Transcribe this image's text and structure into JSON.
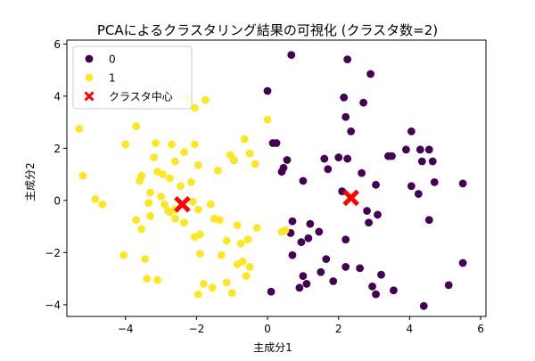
{
  "chart_data": {
    "type": "scatter",
    "title": "PCAによるクラスタリング結果の可視化 (クラスタ数=2)",
    "xlabel": "主成分1",
    "ylabel": "主成分2",
    "xlim": [
      -5.65,
      6.15
    ],
    "ylim": [
      -4.45,
      6.15
    ],
    "xticks": [
      -4,
      -2,
      0,
      2,
      4,
      6
    ],
    "yticks": [
      -4,
      -2,
      0,
      2,
      4,
      6
    ],
    "grid": false,
    "legend_position": "top-left",
    "colors": {
      "cluster0": "#440154",
      "cluster1": "#fde725",
      "center": "#ff0000"
    },
    "series": [
      {
        "name": "0",
        "marker": "circle",
        "color": "#440154",
        "points": [
          [
            0.67,
            5.58
          ],
          [
            2.25,
            5.41
          ],
          [
            2.9,
            4.85
          ],
          [
            0.0,
            4.2
          ],
          [
            2.15,
            3.95
          ],
          [
            2.7,
            3.75
          ],
          [
            2.2,
            3.2
          ],
          [
            2.35,
            2.65
          ],
          [
            4.05,
            2.65
          ],
          [
            0.25,
            2.2
          ],
          [
            0.15,
            2.2
          ],
          [
            3.9,
            1.95
          ],
          [
            4.3,
            1.95
          ],
          [
            4.55,
            1.95
          ],
          [
            3.5,
            1.7
          ],
          [
            3.4,
            1.7
          ],
          [
            4.65,
            1.5
          ],
          [
            2.25,
            1.6
          ],
          [
            2.0,
            1.65
          ],
          [
            0.55,
            1.55
          ],
          [
            0.45,
            1.25
          ],
          [
            0.4,
            1.1
          ],
          [
            1.6,
            1.6
          ],
          [
            1.7,
            1.2
          ],
          [
            2.65,
            1.05
          ],
          [
            4.35,
            1.5
          ],
          [
            3.05,
            0.6
          ],
          [
            4.05,
            0.55
          ],
          [
            4.25,
            0.25
          ],
          [
            4.7,
            0.7
          ],
          [
            5.5,
            0.65
          ],
          [
            1.0,
            0.75
          ],
          [
            2.1,
            0.35
          ],
          [
            2.8,
            -0.4
          ],
          [
            3.1,
            -0.55
          ],
          [
            2.85,
            -0.85
          ],
          [
            4.55,
            -0.75
          ],
          [
            0.7,
            -0.8
          ],
          [
            1.2,
            -0.9
          ],
          [
            1.45,
            -1.2
          ],
          [
            0.65,
            -1.25
          ],
          [
            1.15,
            -1.45
          ],
          [
            2.2,
            -1.5
          ],
          [
            0.95,
            -1.6
          ],
          [
            0.7,
            -2.1
          ],
          [
            1.65,
            -2.25
          ],
          [
            1.5,
            -2.75
          ],
          [
            1.0,
            -2.9
          ],
          [
            2.2,
            -2.55
          ],
          [
            2.6,
            -2.6
          ],
          [
            3.2,
            -2.85
          ],
          [
            1.85,
            -3.1
          ],
          [
            1.1,
            -3.2
          ],
          [
            0.9,
            -3.35
          ],
          [
            2.95,
            -3.3
          ],
          [
            3.05,
            -3.6
          ],
          [
            3.55,
            -3.45
          ],
          [
            5.1,
            -3.25
          ],
          [
            5.5,
            -2.4
          ],
          [
            0.1,
            -3.5
          ],
          [
            4.4,
            -4.05
          ],
          [
            -0.95,
            1.55
          ]
        ]
      },
      {
        "name": "1",
        "marker": "circle",
        "color": "#fde725",
        "points": [
          [
            -1.75,
            3.85
          ],
          [
            -2.25,
            3.95
          ],
          [
            -2.05,
            3.55
          ],
          [
            0.0,
            3.1
          ],
          [
            -3.7,
            2.85
          ],
          [
            -5.3,
            2.75
          ],
          [
            -4.0,
            2.15
          ],
          [
            -3.15,
            2.2
          ],
          [
            -2.7,
            2.15
          ],
          [
            -2.05,
            2.15
          ],
          [
            -0.65,
            2.35
          ],
          [
            -2.35,
            1.85
          ],
          [
            -2.6,
            1.5
          ],
          [
            -1.95,
            1.35
          ],
          [
            -1.05,
            1.75
          ],
          [
            -0.5,
            1.8
          ],
          [
            -0.35,
            1.4
          ],
          [
            -0.95,
            1.55
          ],
          [
            -3.2,
            1.65
          ],
          [
            -3.1,
            1.1
          ],
          [
            -2.95,
            1.0
          ],
          [
            -3.55,
            0.95
          ],
          [
            -5.2,
            0.95
          ],
          [
            -3.6,
            0.75
          ],
          [
            -2.75,
            0.85
          ],
          [
            -2.15,
            0.7
          ],
          [
            -1.4,
            1.15
          ],
          [
            -2.45,
            0.55
          ],
          [
            -3.3,
            0.3
          ],
          [
            -3.0,
            0.15
          ],
          [
            -2.9,
            -0.15
          ],
          [
            -4.85,
            0.05
          ],
          [
            -4.65,
            -0.15
          ],
          [
            -3.35,
            -0.1
          ],
          [
            -2.8,
            -0.4
          ],
          [
            -2.75,
            -0.45
          ],
          [
            -2.6,
            -0.35
          ],
          [
            -2.1,
            -0.05
          ],
          [
            -1.95,
            -0.35
          ],
          [
            -1.6,
            -0.15
          ],
          [
            -3.7,
            -0.75
          ],
          [
            -3.3,
            -0.6
          ],
          [
            -3.55,
            -1.1
          ],
          [
            -2.35,
            -0.85
          ],
          [
            -1.5,
            -0.7
          ],
          [
            -1.35,
            -0.75
          ],
          [
            -0.85,
            -0.95
          ],
          [
            -0.3,
            -1.05
          ],
          [
            -1.9,
            -1.3
          ],
          [
            -2.05,
            -1.4
          ],
          [
            -1.15,
            -1.55
          ],
          [
            -0.55,
            -1.5
          ],
          [
            -0.75,
            -1.65
          ],
          [
            0.4,
            -1.2
          ],
          [
            -4.05,
            -2.1
          ],
          [
            -3.45,
            -2.25
          ],
          [
            -1.9,
            -2.05
          ],
          [
            -1.3,
            -2.1
          ],
          [
            -0.85,
            -2.45
          ],
          [
            -0.7,
            -2.35
          ],
          [
            -0.5,
            -2.55
          ],
          [
            -0.6,
            -2.9
          ],
          [
            -1.15,
            -3.15
          ],
          [
            -3.1,
            -3.05
          ],
          [
            -3.4,
            -3.0
          ],
          [
            -1.8,
            -3.2
          ],
          [
            -1.55,
            -3.35
          ],
          [
            -1.0,
            -3.55
          ],
          [
            -1.95,
            -3.6
          ],
          [
            0.5,
            -1.15
          ],
          [
            -2.6,
            -0.7
          ]
        ]
      },
      {
        "name": "クラスタ中心",
        "marker": "x",
        "color": "#ff0000",
        "points": [
          [
            -2.4,
            -0.15
          ],
          [
            2.35,
            0.1
          ]
        ]
      }
    ],
    "legend": [
      {
        "label": "0",
        "marker": "circle",
        "color": "#440154"
      },
      {
        "label": "1",
        "marker": "circle",
        "color": "#fde725"
      },
      {
        "label": "クラスタ中心",
        "marker": "x",
        "color": "#ff0000"
      }
    ]
  }
}
